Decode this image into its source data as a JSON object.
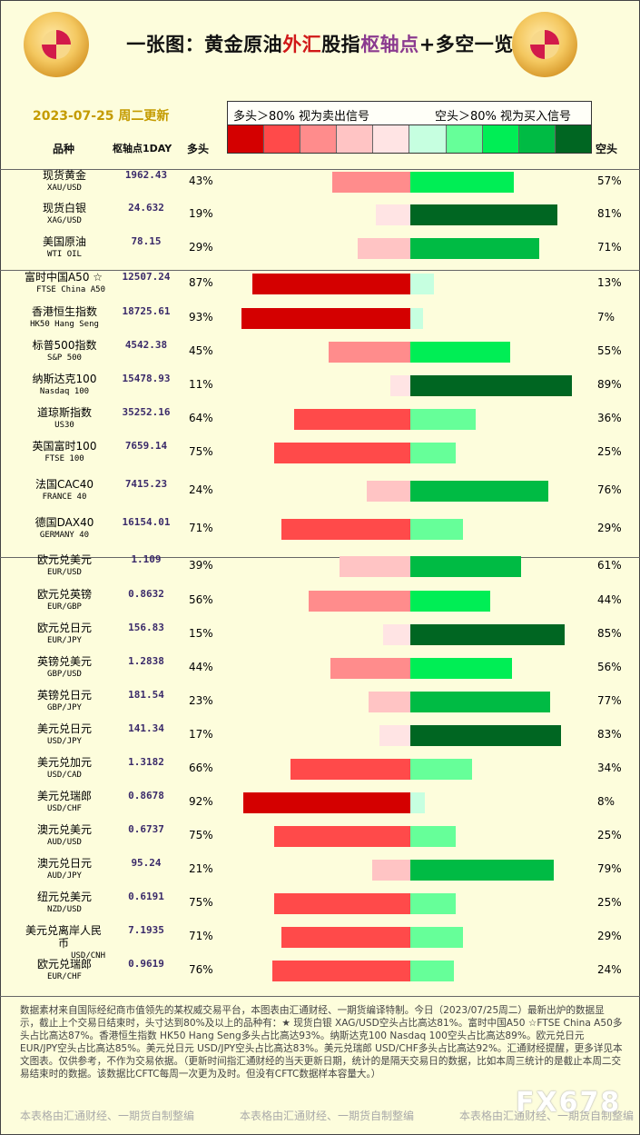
{
  "header": {
    "title_parts": [
      "一张图：黄金原油",
      "外汇",
      "股指",
      "枢轴点",
      "+多空一览"
    ],
    "date": "2023-07-25 周二更新",
    "legend_left": "多头＞80%  视为卖出信号",
    "legend_right": "空头＞80%  视为买入信号",
    "col_name": "品种",
    "col_pivot": "枢轴点1DAY",
    "col_long": "多头",
    "col_short": "空头"
  },
  "colors": {
    "long_scale": [
      "#d40000",
      "#ff4a4a",
      "#ff8c8c",
      "#ffc4c4",
      "#ffe4e4"
    ],
    "short_scale": [
      "#c6ffe0",
      "#66ff99",
      "#00ee55",
      "#00bb44",
      "#006622"
    ]
  },
  "chart_data": {
    "type": "bar",
    "rows": [
      {
        "name": "现货黄金",
        "en": "XAU/USD",
        "pivot": "1962.43",
        "long": 43,
        "short": 57,
        "long_label": "43%",
        "short_label": "57%"
      },
      {
        "name": "现货白银",
        "en": "XAG/USD",
        "pivot": "24.632",
        "long": 19,
        "short": 81,
        "long_label": "19%",
        "short_label": "81%"
      },
      {
        "name": "美国原油",
        "en": "WTI OIL",
        "pivot": "78.15",
        "long": 29,
        "short": 71,
        "long_label": "29%",
        "short_label": "71%"
      },
      {
        "name": "富时中国A50 ☆",
        "en": "FTSE China A50",
        "pivot": "12507.24",
        "long": 87,
        "short": 13,
        "long_label": "87%",
        "short_label": "13%"
      },
      {
        "name": "香港恒生指数",
        "en": "HK50 Hang Seng",
        "pivot": "18725.61",
        "long": 93,
        "short": 7,
        "long_label": "93%",
        "short_label": "7%"
      },
      {
        "name": "标普500指数",
        "en": "S&P 500",
        "pivot": "4542.38",
        "long": 45,
        "short": 55,
        "long_label": "45%",
        "short_label": "55%"
      },
      {
        "name": "纳斯达克100",
        "en": "Nasdaq 100",
        "pivot": "15478.93",
        "long": 11,
        "short": 89,
        "long_label": "11%",
        "short_label": "89%"
      },
      {
        "name": "道琼斯指数",
        "en": "US30",
        "pivot": "35252.16",
        "long": 64,
        "short": 36,
        "long_label": "64%",
        "short_label": "36%"
      },
      {
        "name": "英国富时100",
        "en": "FTSE 100",
        "pivot": "7659.14",
        "long": 75,
        "short": 25,
        "long_label": "75%",
        "short_label": "25%"
      },
      {
        "name": "法国CAC40",
        "en": "FRANCE 40",
        "pivot": "7415.23",
        "long": 24,
        "short": 76,
        "long_label": "24%",
        "short_label": "76%"
      },
      {
        "name": "德国DAX40",
        "en": "GERMANY 40",
        "pivot": "16154.01",
        "long": 71,
        "short": 29,
        "long_label": "71%",
        "short_label": "29%"
      },
      {
        "name": "欧元兑美元",
        "en": "EUR/USD",
        "pivot": "1.109",
        "long": 39,
        "short": 61,
        "long_label": "39%",
        "short_label": "61%"
      },
      {
        "name": "欧元兑英镑",
        "en": "EUR/GBP",
        "pivot": "0.8632",
        "long": 56,
        "short": 44,
        "long_label": "56%",
        "short_label": "44%"
      },
      {
        "name": "欧元兑日元",
        "en": "EUR/JPY",
        "pivot": "156.83",
        "long": 15,
        "short": 85,
        "long_label": "15%",
        "short_label": "85%"
      },
      {
        "name": "英镑兑美元",
        "en": "GBP/USD",
        "pivot": "1.2838",
        "long": 44,
        "short": 56,
        "long_label": "44%",
        "short_label": "56%"
      },
      {
        "name": "英镑兑日元",
        "en": "GBP/JPY",
        "pivot": "181.54",
        "long": 23,
        "short": 77,
        "long_label": "23%",
        "short_label": "77%"
      },
      {
        "name": "美元兑日元",
        "en": "USD/JPY",
        "pivot": "141.34",
        "long": 17,
        "short": 83,
        "long_label": "17%",
        "short_label": "83%"
      },
      {
        "name": "美元兑加元",
        "en": "USD/CAD",
        "pivot": "1.3182",
        "long": 66,
        "short": 34,
        "long_label": "66%",
        "short_label": "34%"
      },
      {
        "name": "美元兑瑞郎",
        "en": "USD/CHF",
        "pivot": "0.8678",
        "long": 92,
        "short": 8,
        "long_label": "92%",
        "short_label": "8%"
      },
      {
        "name": "澳元兑美元",
        "en": "AUD/USD",
        "pivot": "0.6737",
        "long": 75,
        "short": 25,
        "long_label": "75%",
        "short_label": "25%"
      },
      {
        "name": "澳元兑日元",
        "en": "AUD/JPY",
        "pivot": "95.24",
        "long": 21,
        "short": 79,
        "long_label": "21%",
        "short_label": "79%"
      },
      {
        "name": "纽元兑美元",
        "en": "NZD/USD",
        "pivot": "0.6191",
        "long": 75,
        "short": 25,
        "long_label": "75%",
        "short_label": "25%"
      },
      {
        "name": "美元兑离岸人民币",
        "en": "USD/CNH",
        "pivot": "7.1935",
        "long": 71,
        "short": 29,
        "long_label": "71%",
        "short_label": "29%"
      },
      {
        "name": "欧元兑瑞郎",
        "en": "EUR/CHF",
        "pivot": "0.9619",
        "long": 76,
        "short": 24,
        "long_label": "76%",
        "short_label": "24%"
      }
    ]
  },
  "footer": {
    "note": "数据素材来自国际经纪商市值领先的某权威交易平台，本图表由汇通财经、一期货编译特制。今日（2023/07/25周二）最新出炉的数据显示，截止上个交易日结束时，头寸达到80%及以上的品种有：★ 现货白银 XAG/USD空头占比高达81%。富时中国A50 ☆FTSE China A50多头占比高达87%。香港恒生指数 HK50 Hang Seng多头占比高达93%。纳斯达克100 Nasdaq 100空头占比高达89%。欧元兑日元 EUR/JPY空头占比高达85%。美元兑日元 USD/JPY空头占比高达83%。美元兑瑞郎 USD/CHF多头占比高达92%。汇通财经提醒，更多详见本文图表。仅供参考，不作为交易依据。（更新时间指汇通财经的当天更新日期，统计的是隔天交易日的数据，比如本周三统计的是截止本周二交易结束时的数据。该数据比CFTC每周一次更为及时。但没有CFTC数据样本容量大。）",
    "credit": "本表格由汇通财经、一期货自制整编",
    "watermark": "FX678"
  }
}
